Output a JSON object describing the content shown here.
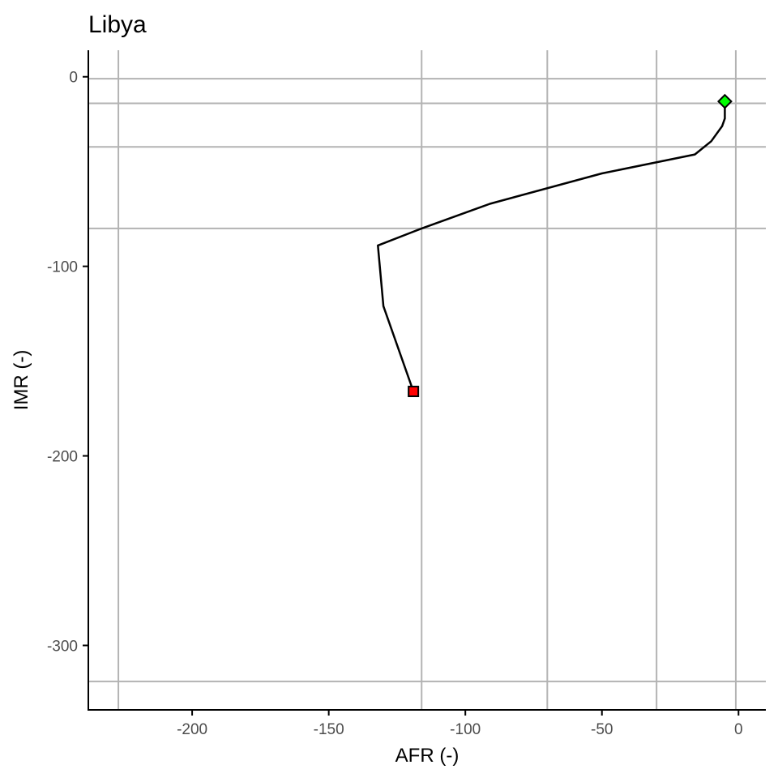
{
  "chart_data": {
    "type": "line",
    "title": "Libya",
    "xlabel": "AFR (-)",
    "ylabel": "IMR (-)",
    "xlim": [
      -238,
      10
    ],
    "ylim": [
      -334,
      14
    ],
    "x_ticks": [
      -200,
      -150,
      -100,
      -50,
      0
    ],
    "y_ticks": [
      0,
      -100,
      -200,
      -300
    ],
    "x_tick_labels": [
      "-200",
      "-150",
      "-100",
      "-50",
      "0"
    ],
    "y_tick_labels": [
      "0",
      "-100",
      "-200",
      "-300"
    ],
    "reference_lines_x": [
      -227,
      -116,
      -70,
      -30,
      -1
    ],
    "reference_lines_y": [
      -1,
      -14,
      -37,
      -80,
      -319
    ],
    "grid": false,
    "series": [
      {
        "points": [
          [
            -119,
            -166
          ],
          [
            -130,
            -121
          ],
          [
            -132,
            -89
          ],
          [
            -116,
            -80
          ],
          [
            -91,
            -67
          ],
          [
            -50,
            -51
          ],
          [
            -16,
            -41
          ],
          [
            -10,
            -34
          ],
          [
            -6,
            -26
          ],
          [
            -5,
            -22
          ],
          [
            -5,
            -18
          ],
          [
            -5,
            -13
          ]
        ]
      }
    ],
    "start_marker": {
      "x": -119,
      "y": -166,
      "shape": "square",
      "color": "#ff0000"
    },
    "end_marker": {
      "x": -5,
      "y": -13,
      "shape": "diamond",
      "color": "#00ff00"
    },
    "colors": {
      "line": "#000000",
      "reference": "#b3b3b3",
      "axis": "#000000",
      "tick_label": "#4d4d4d"
    }
  }
}
